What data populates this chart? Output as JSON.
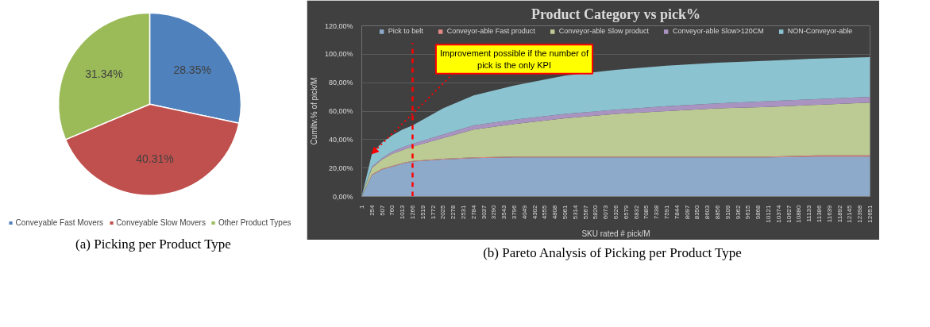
{
  "chart_data": [
    {
      "type": "pie",
      "categories": [
        "Conveyable Fast Movers",
        "Conveyable Slow Movers",
        "Other Product Types"
      ],
      "values": [
        28.35,
        40.31,
        31.34
      ],
      "colors": [
        "#4f81bd",
        "#c0504d",
        "#9bbb59"
      ],
      "value_labels": [
        "28.35%",
        "40.31%",
        "31.34%"
      ],
      "legend": "bottom",
      "annotations": [
        "(a) Picking per Product Type"
      ]
    },
    {
      "type": "area",
      "stacked": true,
      "title": "Product Category vs pick%",
      "xlabel": "SKU rated # pick/M",
      "ylabel": "Cumltv.% of pick/M",
      "legend": "top",
      "grid": "y",
      "x": [
        1,
        254,
        507,
        760,
        1013,
        1266,
        2025,
        2784,
        3796,
        5061,
        6326,
        7591,
        8856,
        10121,
        11386,
        12651
      ],
      "series": [
        {
          "name": "Pick to belt",
          "color": "#8eaacb",
          "values": [
            0,
            15,
            19,
            21,
            23,
            24.5,
            26,
            27,
            27.5,
            27.5,
            27.5,
            27.5,
            27.5,
            27.5,
            28,
            28
          ]
        },
        {
          "name": "Conveyor-able Fast product",
          "color": "#e08a88",
          "values": [
            0,
            0.5,
            0.5,
            0.5,
            0.5,
            0.5,
            0.5,
            0.5,
            0.5,
            0.5,
            0.5,
            0.5,
            0.5,
            0.5,
            1,
            1
          ]
        },
        {
          "name": "Conveyor-able Slow product",
          "color": "#bccb94",
          "values": [
            0,
            4.5,
            6.5,
            8.5,
            9,
            10,
            14.5,
            19.5,
            23,
            27,
            30,
            32,
            34,
            35,
            35.5,
            37
          ]
        },
        {
          "name": "Conveyor-able Slow>120CM",
          "color": "#a993c0",
          "values": [
            0,
            1,
            1,
            1.5,
            2,
            2,
            2.5,
            3,
            3,
            3,
            3,
            3.5,
            3.5,
            4,
            4,
            4
          ]
        },
        {
          "name": "NON-Conveyor-able",
          "color": "#8cc3d1",
          "values": [
            0,
            9,
            11,
            11.5,
            12.5,
            13,
            18.5,
            21,
            24,
            27,
            28,
            28.5,
            28.5,
            28.5,
            28.5,
            28
          ]
        }
      ],
      "xlim": [
        1,
        12651
      ],
      "xticks": [
        1,
        254,
        507,
        760,
        1013,
        1266,
        1519,
        1772,
        2025,
        2278,
        2531,
        2784,
        3037,
        3290,
        3543,
        3796,
        4049,
        4302,
        4555,
        4808,
        5061,
        5314,
        5567,
        5820,
        6073,
        6326,
        6579,
        6832,
        7085,
        7338,
        7591,
        7844,
        8097,
        8350,
        8603,
        8856,
        9109,
        9362,
        9615,
        9868,
        10121,
        10374,
        10627,
        10880,
        11133,
        11386,
        11639,
        11892,
        12145,
        12398,
        12651
      ],
      "ylim": [
        0,
        120
      ],
      "yticks": [
        {
          "value": 0,
          "label": "0,00%"
        },
        {
          "value": 20,
          "label": "20,00%"
        },
        {
          "value": 40,
          "label": "40,00%"
        },
        {
          "value": 60,
          "label": "60,00%"
        },
        {
          "value": 80,
          "label": "80,00%"
        },
        {
          "value": 100,
          "label": "100,00%"
        },
        {
          "value": 120,
          "label": "120,00%"
        }
      ],
      "ref_lines": [
        {
          "axis": "x",
          "value": 1266,
          "color": "#ff0000",
          "line_style": "dashed"
        }
      ],
      "annotations": [
        "Improvement possible if the number of pick is the only KPI",
        "(b) Pareto Analysis of Picking per Product Type"
      ]
    }
  ]
}
